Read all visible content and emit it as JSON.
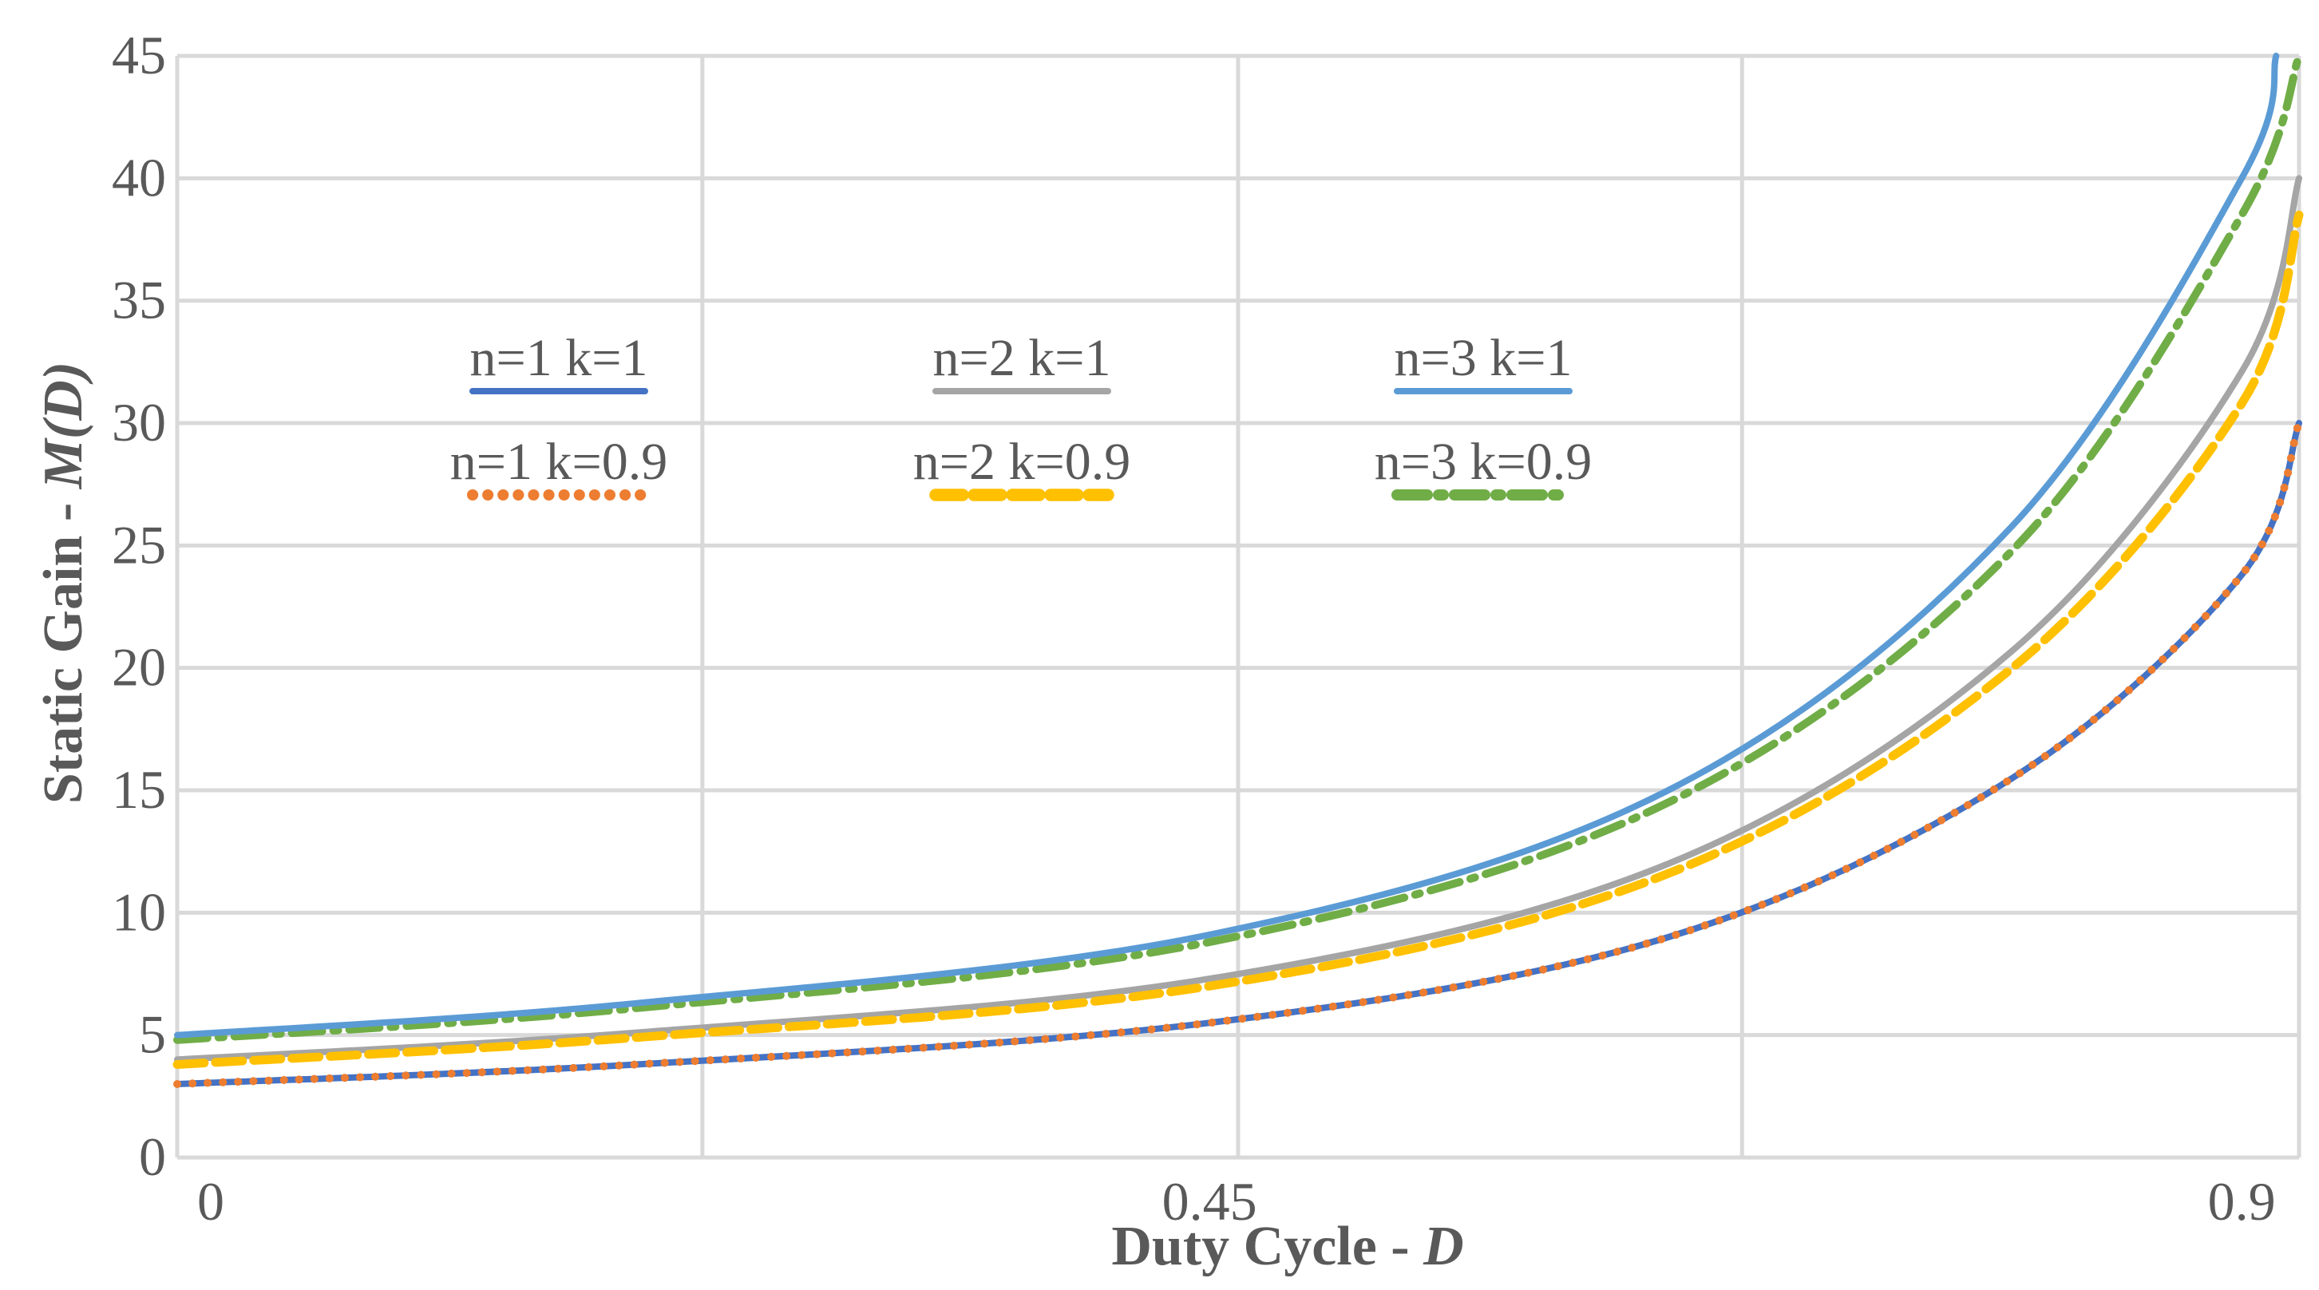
{
  "chart_data": {
    "type": "line",
    "xlabel": {
      "prefix": "Duty Cycle - ",
      "var": "D"
    },
    "ylabel": {
      "prefix": "Static Gain - ",
      "var": "M(D)"
    },
    "xlim": [
      0,
      0.925
    ],
    "ylim": [
      0,
      45
    ],
    "x_ticks": [
      0,
      0.45,
      0.9
    ],
    "x_tick_labels": [
      "0",
      "0.45",
      "0.9"
    ],
    "y_ticks": [
      0,
      5,
      10,
      15,
      20,
      25,
      30,
      35,
      40,
      45
    ],
    "y_tick_labels": [
      "0",
      "5",
      "10",
      "15",
      "20",
      "25",
      "30",
      "35",
      "40",
      "45"
    ],
    "grid": true,
    "series": [
      {
        "name": "n=1 k=1",
        "n": 1,
        "k": 1,
        "color": "#4472C4",
        "dash": "solid",
        "x": [
          0,
          0.2,
          0.45,
          0.65,
          0.8,
          0.9,
          0.925
        ],
        "y": [
          3.0,
          3.8,
          5.5,
          9.0,
          15.5,
          23.8,
          30.0
        ]
      },
      {
        "name": "n=1 k=0.9",
        "n": 1,
        "k": 0.9,
        "color": "#ED7D31",
        "dash": "dotted",
        "x": [
          0,
          0.2,
          0.45,
          0.65,
          0.8,
          0.9,
          0.925
        ],
        "y": [
          3.0,
          3.8,
          5.5,
          9.0,
          15.5,
          23.8,
          30.0
        ]
      },
      {
        "name": "n=2 k=1",
        "n": 2,
        "k": 1,
        "color": "#A5A5A5",
        "dash": "solid",
        "x": [
          0,
          0.2,
          0.45,
          0.65,
          0.8,
          0.9,
          0.925
        ],
        "y": [
          4.0,
          5.1,
          7.3,
          12.0,
          20.7,
          32.1,
          40.0
        ]
      },
      {
        "name": "n=2 k=0.9",
        "n": 2,
        "k": 0.9,
        "color": "#FFC000",
        "dash": "dashed",
        "x": [
          0,
          0.2,
          0.45,
          0.65,
          0.8,
          0.9,
          0.925
        ],
        "y": [
          3.8,
          4.9,
          7.0,
          11.6,
          20.0,
          30.8,
          38.5
        ]
      },
      {
        "name": "n=3 k=1",
        "n": 3,
        "k": 1,
        "color": "#5B9BD5",
        "dash": "solid",
        "x": [
          0,
          0.2,
          0.45,
          0.65,
          0.8,
          0.9,
          0.915
        ],
        "y": [
          5.0,
          6.3,
          9.1,
          15.0,
          25.8,
          40.0,
          45.0
        ]
      },
      {
        "name": "n=3 k=0.9",
        "n": 3,
        "k": 0.9,
        "color": "#70AD47",
        "dash": "dashdot",
        "x": [
          0,
          0.2,
          0.45,
          0.65,
          0.8,
          0.9,
          0.925
        ],
        "y": [
          4.8,
          6.1,
          8.8,
          14.5,
          24.8,
          38.5,
          45.0
        ]
      }
    ],
    "legend": {
      "position": "inside-top",
      "layout": "three columns, two rows"
    }
  }
}
